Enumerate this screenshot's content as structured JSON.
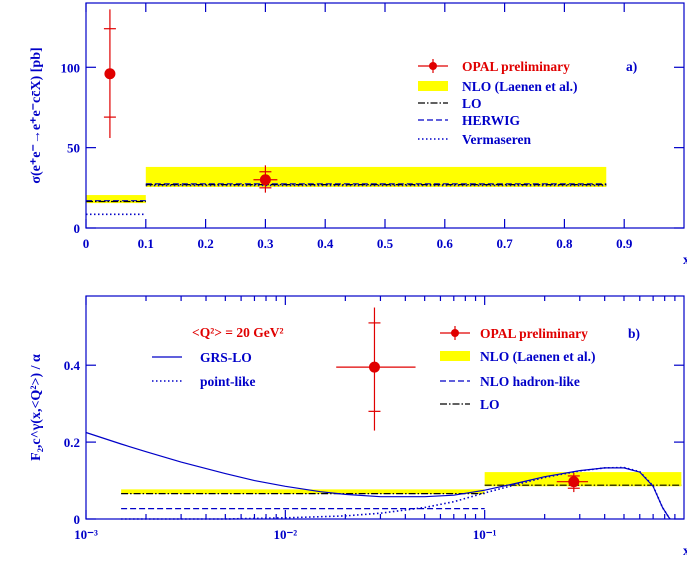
{
  "chart_data": [
    {
      "type": "bar",
      "panel": "a)",
      "xlabel": "x",
      "ylabel": "σ(e⁺e⁻→e⁺e⁻cc̄X) [pb]",
      "xlim": [
        0,
        1.0
      ],
      "ylim": [
        0,
        140
      ],
      "xticks": [
        "0",
        "0.1",
        "0.2",
        "0.3",
        "0.4",
        "0.5",
        "0.6",
        "0.7",
        "0.8",
        "0.9"
      ],
      "xtick_values": [
        0,
        0.1,
        0.2,
        0.3,
        0.4,
        0.5,
        0.6,
        0.7,
        0.8,
        0.9
      ],
      "yticks": [
        "0",
        "50",
        "100"
      ],
      "ytick_values": [
        0,
        50,
        100
      ],
      "legend": {
        "opal": "OPAL preliminary",
        "panel_tag": "a)",
        "nlo": "NLO (Laenen et al.)",
        "lo": "LO",
        "herwig": "HERWIG",
        "vermaseren": "Vermaseren"
      },
      "bins": [
        {
          "x_low": 0.0,
          "x_high": 0.1,
          "nlo_band": [
            15.5,
            20.5
          ],
          "lo": 16.5,
          "herwig": 17.0,
          "vermaseren": 8.5
        },
        {
          "x_low": 0.1,
          "x_high": 0.87,
          "nlo_band": [
            25.5,
            38.0
          ],
          "lo": 27.0,
          "herwig": 27.5,
          "vermaseren": 26.5
        }
      ],
      "data_points": [
        {
          "series": "OPAL preliminary",
          "x": 0.04,
          "y": 96,
          "y_stat": [
            69,
            124
          ],
          "y_total": [
            56,
            136
          ]
        },
        {
          "series": "OPAL preliminary",
          "x": 0.3,
          "y": 30,
          "y_stat": [
            25,
            35
          ],
          "y_total": [
            22,
            39
          ],
          "x_err": [
            0.28,
            0.32
          ]
        }
      ]
    },
    {
      "type": "line",
      "panel": "b)",
      "xlabel": "x",
      "ylabel": "F₂,c^γ(x,<Q²>) / α",
      "xscale": "log",
      "xlim": [
        0.001,
        1.0
      ],
      "ylim": [
        0,
        0.58
      ],
      "xticks": [
        "10⁻³",
        "10⁻²",
        "10⁻¹"
      ],
      "xtick_values": [
        0.001,
        0.01,
        0.1
      ],
      "yticks": [
        "0",
        "0.2",
        "0.4"
      ],
      "ytick_values": [
        0,
        0.2,
        0.4
      ],
      "annotation": "<Q²> = 20 GeV²",
      "legend": {
        "opal": "OPAL preliminary",
        "panel_tag": "b)",
        "nlo": "NLO (Laenen et al.)",
        "nlo_hadron": "NLO hadron-like",
        "lo": "LO",
        "grs": "GRS-LO",
        "pointlike": "point-like"
      },
      "bins": [
        {
          "x_low": 0.0015,
          "x_high": 0.1,
          "nlo_band": [
            0.065,
            0.077
          ],
          "lo": 0.066,
          "nlo_hadron": 0.027
        },
        {
          "x_low": 0.1,
          "x_high": 0.97,
          "nlo_band": [
            0.085,
            0.122
          ],
          "lo": 0.088,
          "nlo_hadron": 0.0
        }
      ],
      "curves": {
        "grs_lo": {
          "x": [
            0.001,
            0.0015,
            0.002,
            0.003,
            0.005,
            0.007,
            0.01,
            0.015,
            0.02,
            0.03,
            0.05,
            0.07,
            0.1,
            0.15,
            0.2,
            0.3,
            0.4,
            0.5,
            0.6,
            0.7,
            0.78,
            0.85
          ],
          "y": [
            0.225,
            0.195,
            0.175,
            0.148,
            0.118,
            0.1,
            0.085,
            0.071,
            0.064,
            0.058,
            0.058,
            0.062,
            0.075,
            0.095,
            0.11,
            0.126,
            0.133,
            0.133,
            0.122,
            0.085,
            0.03,
            0.0
          ]
        },
        "pointlike": {
          "x": [
            0.0015,
            0.003,
            0.005,
            0.01,
            0.02,
            0.03,
            0.05,
            0.07,
            0.1,
            0.15,
            0.2,
            0.3,
            0.4,
            0.5,
            0.6,
            0.7,
            0.78,
            0.85
          ],
          "y": [
            0.0,
            0.0,
            0.0,
            0.003,
            0.008,
            0.015,
            0.03,
            0.045,
            0.068,
            0.092,
            0.108,
            0.125,
            0.133,
            0.134,
            0.123,
            0.086,
            0.03,
            0.0
          ]
        }
      },
      "data_points": [
        {
          "series": "OPAL preliminary",
          "x": 0.028,
          "y": 0.395,
          "y_stat": [
            0.28,
            0.51
          ],
          "y_total": [
            0.23,
            0.55
          ],
          "x_err": [
            0.018,
            0.045
          ]
        },
        {
          "series": "OPAL preliminary",
          "x": 0.28,
          "y": 0.097,
          "y_stat": [
            0.08,
            0.112
          ],
          "y_total": [
            0.07,
            0.12
          ],
          "x_err": [
            0.23,
            0.33
          ]
        }
      ]
    }
  ]
}
